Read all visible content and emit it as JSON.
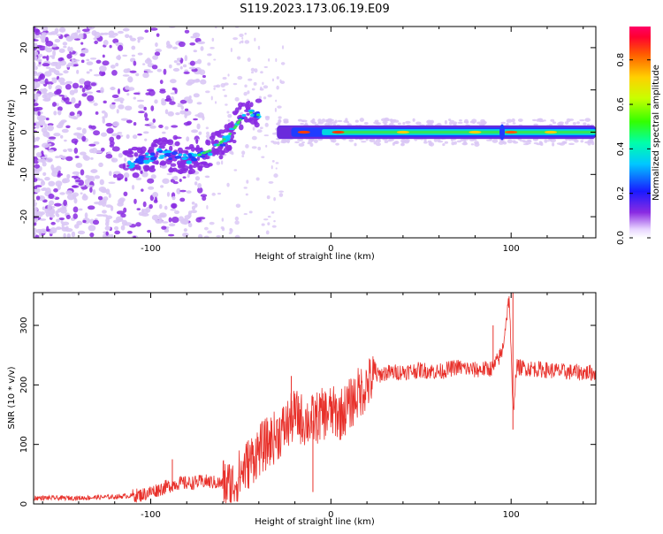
{
  "title": "S119.2023.173.06.19.E09",
  "colors": {
    "snr_line": "#e8302a",
    "axis": "#000000",
    "speckle": "#8a2be2",
    "light_speckle": "#d9c6f5"
  },
  "chart_data": [
    {
      "type": "heatmap",
      "xlabel": "Height of straight line (km)",
      "ylabel": "Frequency (Hz)",
      "xlim": [
        -165,
        147
      ],
      "ylim": [
        -25,
        25
      ],
      "xticks": [
        -100,
        0,
        100
      ],
      "yticks": [
        -20,
        -10,
        0,
        10,
        20
      ],
      "colorbar": {
        "label": "Normalized spectral amplitude",
        "range": [
          0.0,
          0.95
        ],
        "ticks": [
          0.0,
          0.2,
          0.4,
          0.6,
          0.8
        ],
        "colormap": "rainbow (violet low, red high)"
      },
      "ridges": [
        {
          "feature": "chirping echo (rising frequency)",
          "x": [
            -115,
            -95,
            -80,
            -65,
            -55,
            -47,
            -40
          ],
          "y": [
            -8,
            -5,
            -6.5,
            -4,
            0,
            5,
            4
          ]
        },
        {
          "feature": "steady zero-Doppler echo",
          "x": [
            -30,
            0,
            95,
            147
          ],
          "y": [
            0,
            0,
            0,
            0
          ]
        }
      ],
      "grid": false
    },
    {
      "type": "line",
      "xlabel": "Height of straight line (km)",
      "ylabel": "SNR (10 * v/v)",
      "xlim": [
        -165,
        147
      ],
      "ylim": [
        0,
        355
      ],
      "xticks": [
        -100,
        0,
        100
      ],
      "yticks": [
        0,
        100,
        200,
        300
      ],
      "grid": false,
      "series": [
        {
          "x": [
            -165,
            -140,
            -120,
            -105,
            -95,
            -85,
            -78,
            -70,
            -62,
            -55,
            -48,
            -40,
            -32,
            -25,
            -20,
            -15,
            -10,
            -5,
            0,
            5,
            10,
            15,
            20,
            25,
            30,
            40,
            50,
            60,
            70,
            80,
            90,
            95,
            99,
            101,
            103,
            110,
            120,
            130,
            147
          ],
          "y": [
            10,
            10,
            12,
            15,
            25,
            35,
            35,
            38,
            35,
            30,
            60,
            90,
            110,
            130,
            150,
            140,
            140,
            150,
            155,
            150,
            165,
            185,
            200,
            215,
            220,
            222,
            225,
            222,
            230,
            225,
            228,
            255,
            350,
            150,
            230,
            228,
            225,
            222,
            220
          ],
          "spikes": [
            {
              "x": 101,
              "y": 355
            },
            {
              "x": 101,
              "y": 125
            },
            {
              "x": 90,
              "y": 300
            },
            {
              "x": -22,
              "y": 215
            },
            {
              "x": -10,
              "y": 20
            },
            {
              "x": -88,
              "y": 75
            }
          ]
        }
      ]
    }
  ]
}
